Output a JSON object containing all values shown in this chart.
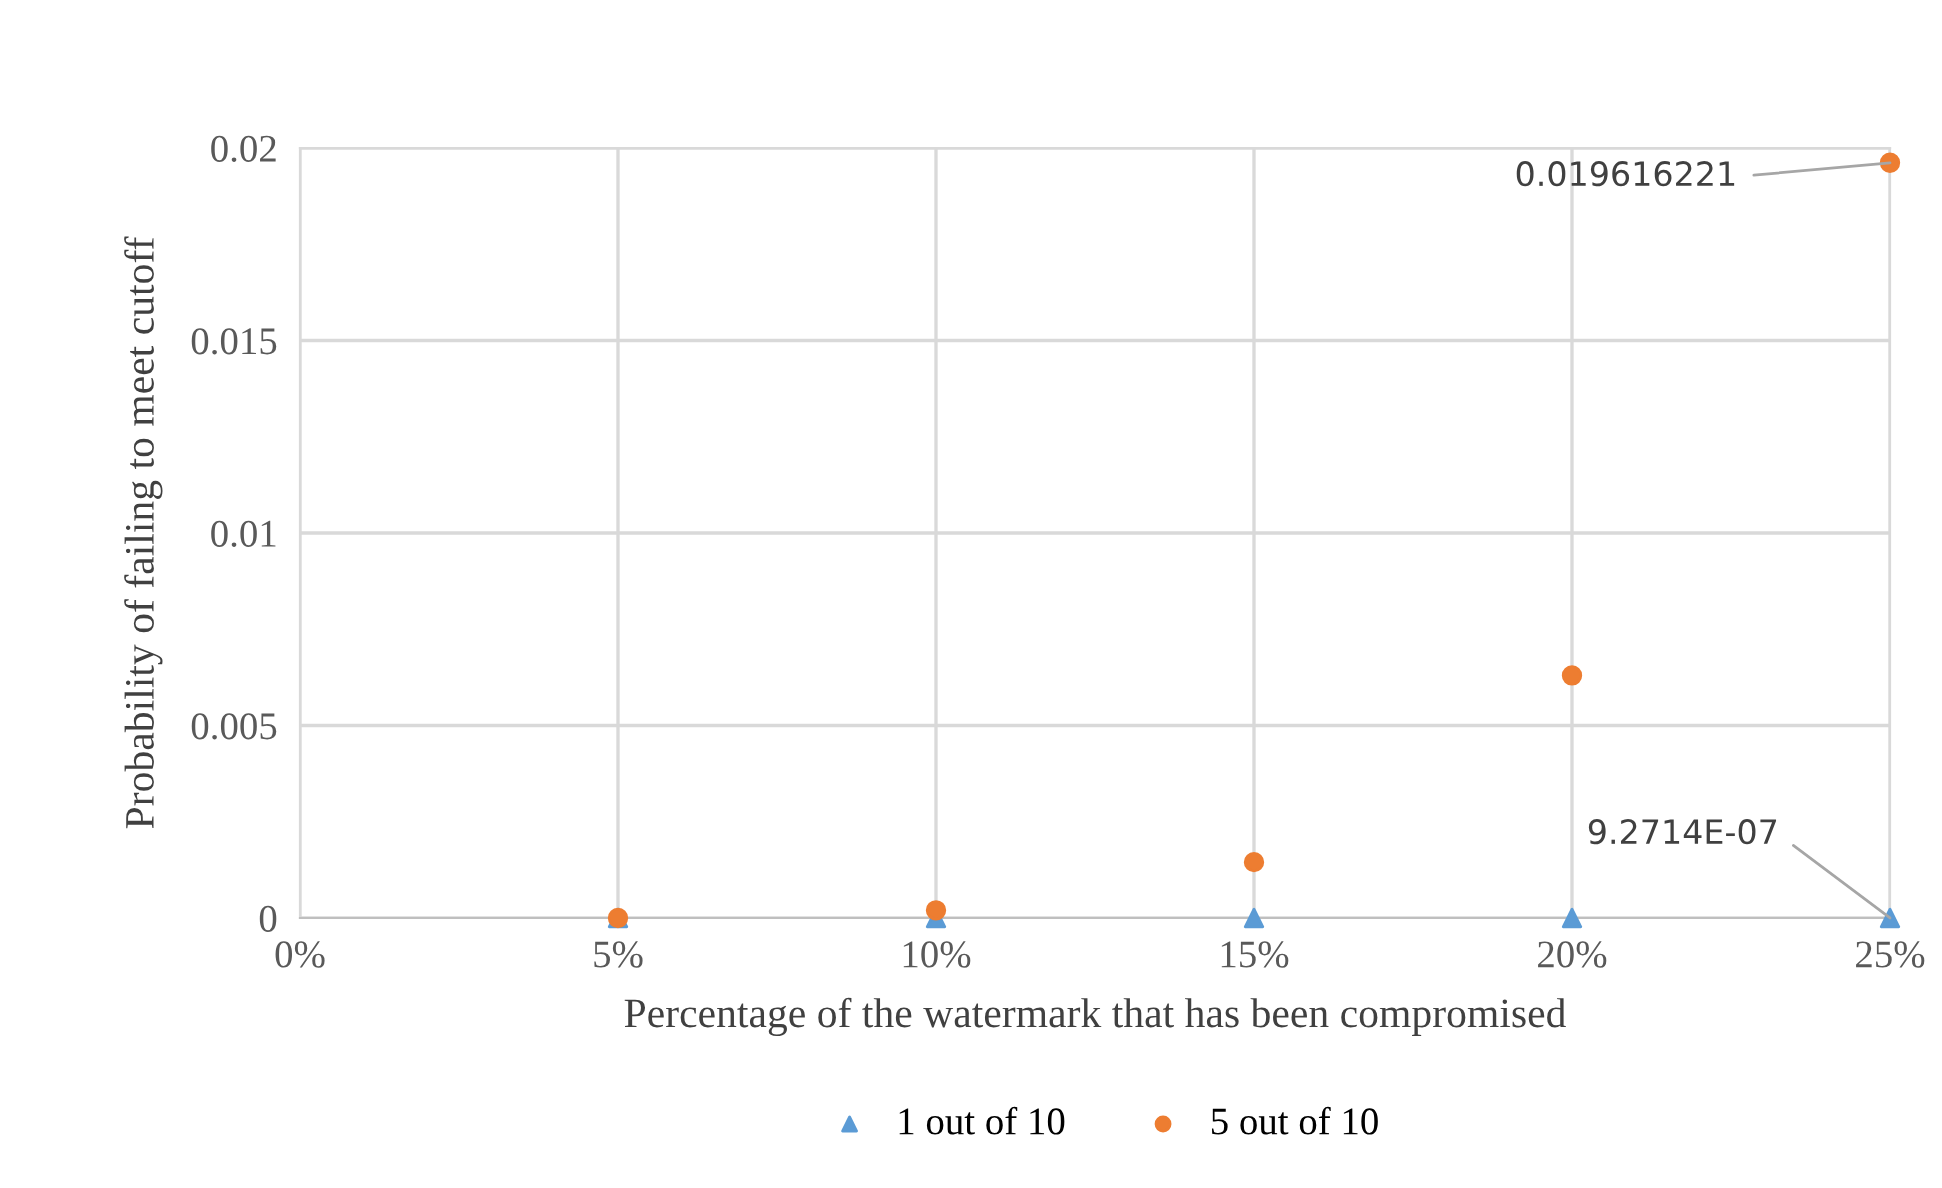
{
  "chart_data": {
    "type": "scatter",
    "xlabel": "Percentage of the watermark that has been compromised",
    "ylabel": "Probability of failing to meet cutoff",
    "x": [
      5,
      10,
      15,
      20,
      25
    ],
    "series": [
      {
        "name": "1 out of 10",
        "color": "#5b9bd5",
        "marker": "triangle",
        "values": [
          0,
          0,
          0,
          0,
          9.2714e-07
        ]
      },
      {
        "name": "5 out of 10",
        "color": "#ed7d31",
        "marker": "circle",
        "values": [
          0,
          0.0002,
          0.00145,
          0.0063,
          0.019616221
        ]
      }
    ],
    "xlim": [
      0,
      25
    ],
    "xticks": [
      {
        "value": 0,
        "label": "0%"
      },
      {
        "value": 5,
        "label": "5%"
      },
      {
        "value": 10,
        "label": "10%"
      },
      {
        "value": 15,
        "label": "15%"
      },
      {
        "value": 20,
        "label": "20%"
      },
      {
        "value": 25,
        "label": "25%"
      }
    ],
    "ylim": [
      0,
      0.02
    ],
    "yticks": [
      0,
      0.005,
      0.01,
      0.015,
      0.02
    ],
    "annotations": [
      {
        "text": "0.019616221",
        "x": 25,
        "y": 0.019616221
      },
      {
        "text": "9.2714E-07",
        "x": 25,
        "y": 9.2714e-07
      }
    ],
    "grid": true,
    "legend": "bottom"
  }
}
